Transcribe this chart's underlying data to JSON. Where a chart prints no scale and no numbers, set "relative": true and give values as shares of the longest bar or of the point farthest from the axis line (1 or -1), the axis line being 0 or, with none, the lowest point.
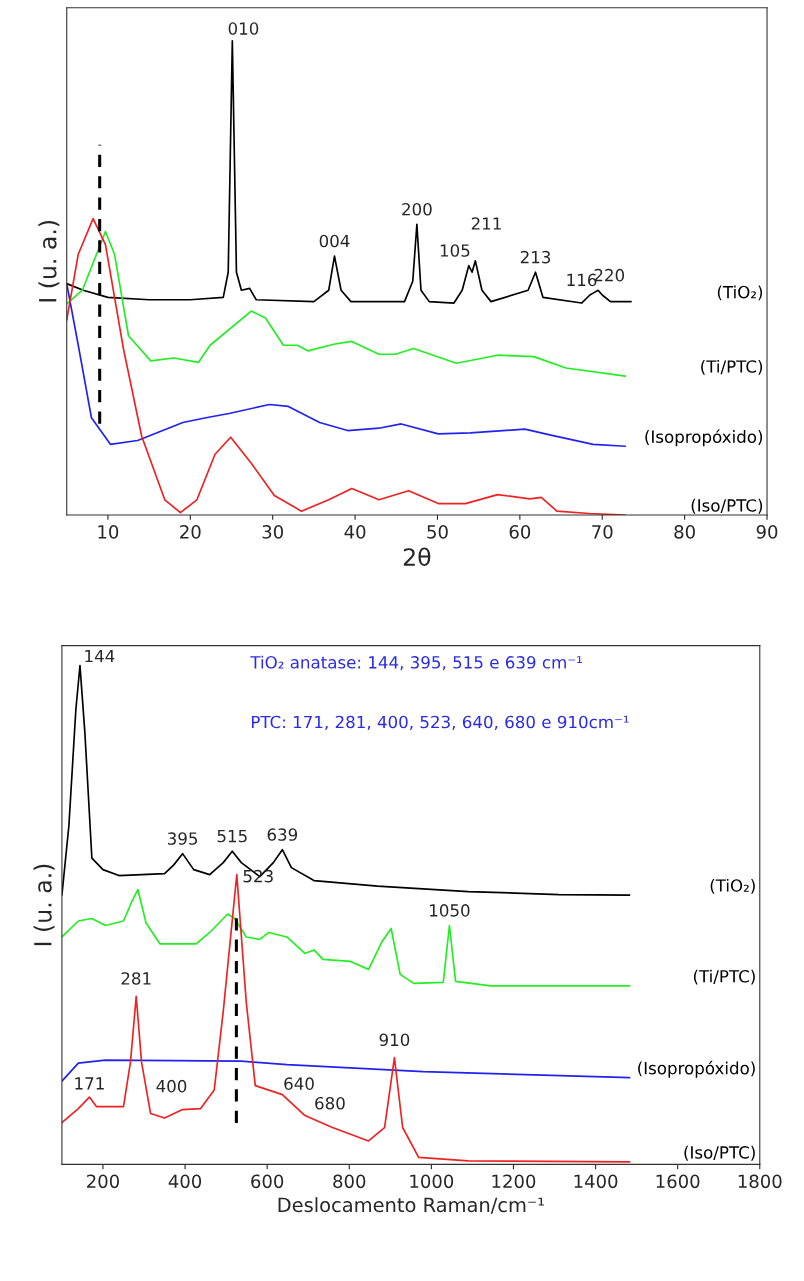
{
  "chart_data": [
    {
      "type": "line",
      "xlabel": "2θ",
      "ylabel": "I (u. a.)",
      "relative": true,
      "xlim": [
        5,
        90
      ],
      "xticks": [
        10,
        20,
        30,
        40,
        50,
        60,
        70,
        80,
        90
      ],
      "series": [
        {
          "name": "(TiO₂)",
          "color": "#000000",
          "x": [
            5,
            7,
            10,
            15,
            20,
            24,
            24.6,
            25.1,
            25.6,
            26.2,
            27.2,
            28,
            35,
            36.8,
            37.5,
            38.3,
            39.5,
            46,
            47,
            47.5,
            48,
            49,
            52,
            53,
            53.8,
            54.2,
            54.6,
            55.4,
            56.5,
            61,
            61.9,
            62.8,
            67.5,
            68.5,
            69,
            69.5,
            70,
            71,
            73.5
          ],
          "values": [
            0.488,
            0.474,
            0.459,
            0.454,
            0.454,
            0.459,
            0.512,
            1.0,
            0.512,
            0.474,
            0.478,
            0.454,
            0.45,
            0.474,
            0.546,
            0.474,
            0.45,
            0.45,
            0.493,
            0.613,
            0.474,
            0.45,
            0.447,
            0.474,
            0.526,
            0.512,
            0.536,
            0.474,
            0.45,
            0.474,
            0.512,
            0.459,
            0.447,
            0.464,
            0.469,
            0.474,
            0.464,
            0.45,
            0.45
          ]
        },
        {
          "name": "(Ti/PTC)",
          "color": "#22ee22",
          "x": [
            5,
            6.9,
            9.7,
            10.8,
            12.5,
            15.2,
            18,
            21,
            22.4,
            27.4,
            29.1,
            31.3,
            33,
            34.3,
            37.4,
            39.6,
            42.9,
            44.9,
            47.1,
            52.3,
            57.3,
            61.7,
            65.6,
            72.8
          ],
          "values": [
            0.445,
            0.474,
            0.598,
            0.55,
            0.378,
            0.325,
            0.331,
            0.322,
            0.358,
            0.43,
            0.416,
            0.358,
            0.358,
            0.346,
            0.36,
            0.366,
            0.339,
            0.339,
            0.351,
            0.32,
            0.337,
            0.334,
            0.31,
            0.293
          ]
        },
        {
          "name": "(Isopropóxido)",
          "color": "#2222ee",
          "x": [
            5,
            6.4,
            8,
            10.3,
            13.6,
            19.1,
            21.9,
            24.7,
            29.6,
            31.9,
            35.7,
            39.1,
            42.9,
            45.6,
            50.1,
            54,
            60.6,
            63.9,
            68.9,
            72.8
          ],
          "values": [
            0.488,
            0.358,
            0.205,
            0.149,
            0.157,
            0.195,
            0.205,
            0.214,
            0.233,
            0.229,
            0.195,
            0.178,
            0.183,
            0.192,
            0.171,
            0.173,
            0.181,
            0.168,
            0.149,
            0.145
          ]
        },
        {
          "name": "(Iso/PTC)",
          "color": "#ee2222",
          "x": [
            5,
            6.4,
            8.2,
            9.7,
            11.9,
            14.1,
            16.9,
            18.8,
            20.8,
            23,
            24.9,
            27.4,
            30.2,
            33.5,
            36.8,
            39.6,
            42.9,
            46.5,
            50.1,
            53.4,
            57.3,
            61.2,
            62.6,
            64.5,
            68.4,
            72.8
          ],
          "values": [
            0.411,
            0.55,
            0.625,
            0.57,
            0.349,
            0.166,
            0.032,
            0.005,
            0.032,
            0.128,
            0.164,
            0.109,
            0.041,
            0.008,
            0.032,
            0.056,
            0.032,
            0.051,
            0.024,
            0.024,
            0.043,
            0.034,
            0.037,
            0.008,
            0.003,
            0.0
          ]
        }
      ],
      "annotations": [
        {
          "text": "010",
          "x": 25.1,
          "y": 1.0
        },
        {
          "text": "004",
          "x": 37.5,
          "y": 0.546
        },
        {
          "text": "200",
          "x": 47.5,
          "y": 0.613
        },
        {
          "text": "105",
          "x": 53.8,
          "y": 0.526
        },
        {
          "text": "211",
          "x": 54.6,
          "y": 0.536
        },
        {
          "text": "213",
          "x": 61.9,
          "y": 0.512
        },
        {
          "text": "116",
          "x": 68.5,
          "y": 0.464
        },
        {
          "text": "220",
          "x": 69.5,
          "y": 0.474
        }
      ],
      "ref_lines": [
        {
          "axis": "x",
          "value": 9,
          "color": "#000000",
          "line_style": "dashed"
        }
      ]
    },
    {
      "type": "line",
      "xlabel": "Deslocamento Raman/cm⁻¹",
      "ylabel": "I (u. a.)",
      "relative": true,
      "xlim": [
        100,
        1800
      ],
      "xticks": [
        200,
        400,
        600,
        800,
        1000,
        1200,
        1400,
        1600,
        1800
      ],
      "series": [
        {
          "name": "(TiO₂)",
          "color": "#000000",
          "x": [
            100,
            117,
            134,
            144,
            156,
            173,
            200,
            239,
            350,
            372,
            394,
            421,
            460,
            493,
            515,
            537,
            582,
            615,
            637,
            659,
            714,
            869,
            1090,
            1311,
            1483
          ],
          "values": [
            0.54,
            0.679,
            0.912,
            1.0,
            0.865,
            0.614,
            0.591,
            0.579,
            0.583,
            0.6,
            0.623,
            0.591,
            0.581,
            0.605,
            0.628,
            0.605,
            0.577,
            0.605,
            0.631,
            0.595,
            0.569,
            0.558,
            0.547,
            0.541,
            0.54
          ]
        },
        {
          "name": "(Ti/PTC)",
          "color": "#22ee22",
          "x": [
            100,
            140,
            173,
            206,
            250,
            272,
            285,
            305,
            339,
            427,
            460,
            504,
            521,
            549,
            582,
            604,
            648,
            692,
            714,
            736,
            803,
            847,
            880,
            902,
            924,
            957,
            1029,
            1044,
            1059,
            1145,
            1483
          ],
          "values": [
            0.456,
            0.488,
            0.493,
            0.479,
            0.488,
            0.53,
            0.551,
            0.484,
            0.442,
            0.442,
            0.465,
            0.502,
            0.493,
            0.456,
            0.451,
            0.465,
            0.456,
            0.423,
            0.43,
            0.411,
            0.407,
            0.391,
            0.447,
            0.473,
            0.381,
            0.363,
            0.365,
            0.479,
            0.367,
            0.358,
            0.358
          ]
        },
        {
          "name": "(Isopropóxido)",
          "color": "#2222ee",
          "x": [
            100,
            140,
            206,
            537,
            648,
            980,
            1483
          ],
          "values": [
            0.167,
            0.203,
            0.209,
            0.207,
            0.2,
            0.186,
            0.174
          ]
        },
        {
          "name": "(Iso/PTC)",
          "color": "#ee2222",
          "x": [
            100,
            140,
            167,
            184,
            250,
            267,
            281,
            294,
            316,
            350,
            394,
            438,
            471,
            493,
            526,
            549,
            571,
            637,
            692,
            759,
            847,
            886,
            910,
            930,
            969,
            1090,
            1483
          ],
          "values": [
            0.084,
            0.112,
            0.135,
            0.116,
            0.116,
            0.205,
            0.337,
            0.205,
            0.102,
            0.093,
            0.11,
            0.112,
            0.149,
            0.307,
            0.581,
            0.326,
            0.158,
            0.14,
            0.098,
            0.074,
            0.047,
            0.074,
            0.214,
            0.074,
            0.014,
            0.007,
            0.005
          ]
        }
      ],
      "annotations": [
        "TiO₂ anatase: 144, 395, 515 e 639 cm⁻¹",
        "PTC: 171, 281, 400, 523, 640, 680 e 910cm⁻¹",
        {
          "text": "144",
          "x": 144,
          "y": 1.0
        },
        {
          "text": "395",
          "x": 394,
          "y": 0.623
        },
        {
          "text": "515",
          "x": 515,
          "y": 0.628
        },
        {
          "text": "639",
          "x": 637,
          "y": 0.631
        },
        {
          "text": "1050",
          "x": 1044,
          "y": 0.479
        },
        {
          "text": "523",
          "x": 526,
          "y": 0.581
        },
        {
          "text": "281",
          "x": 281,
          "y": 0.337
        },
        {
          "text": "171",
          "x": 167,
          "y": 0.135
        },
        {
          "text": "400",
          "x": 394,
          "y": 0.11
        },
        {
          "text": "640",
          "x": 637,
          "y": 0.14
        },
        {
          "text": "680",
          "x": 692,
          "y": 0.098
        },
        {
          "text": "910",
          "x": 910,
          "y": 0.214
        }
      ],
      "ref_lines": [
        {
          "axis": "x",
          "value": 525,
          "color": "#000000",
          "line_style": "dashed"
        }
      ]
    }
  ]
}
